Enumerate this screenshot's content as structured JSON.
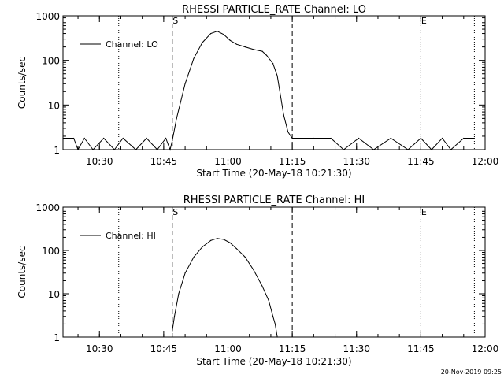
{
  "chart_data": [
    {
      "type": "line",
      "title": "RHESSI PARTICLE_RATE Channel: LO",
      "xlabel": "Start Time (20-May-18 10:21:30)",
      "ylabel": "Counts/sec",
      "y_scale": "log",
      "ylim": [
        1,
        1000
      ],
      "xlim": [
        "10:21:30",
        "12:00"
      ],
      "x_ticks": [
        "10:30",
        "10:45",
        "11:00",
        "11:15",
        "11:30",
        "11:45",
        "12:00"
      ],
      "y_ticks": [
        "1",
        "10",
        "100",
        "1000"
      ],
      "legend": "upper-left",
      "grid": false,
      "markers": [
        {
          "time": "10:47:00",
          "style": "dashed",
          "label": "S"
        },
        {
          "time": "11:15:00",
          "style": "dashed",
          "label": ""
        },
        {
          "time": "10:34:30",
          "style": "dotted",
          "label": ""
        },
        {
          "time": "11:45:00",
          "style": "dotted",
          "label": "E"
        },
        {
          "time": "11:57:30",
          "style": "dotted",
          "label": ""
        }
      ],
      "series": [
        {
          "name": "Channel: LO",
          "x": [
            "10:21:30",
            "10:24:00",
            "10:25:00",
            "10:26:30",
            "10:28:30",
            "10:31:00",
            "10:33:30",
            "10:35:30",
            "10:38:30",
            "10:41:00",
            "10:43:30",
            "10:45:30",
            "10:46:30",
            "10:47:00",
            "10:48:00",
            "10:50:00",
            "10:52:00",
            "10:54:00",
            "10:56:00",
            "10:57:30",
            "10:59:00",
            "11:00:30",
            "11:02:00",
            "11:04:00",
            "11:06:00",
            "11:08:00",
            "11:09:00",
            "11:10:30",
            "11:11:30",
            "11:13:00",
            "11:14:00",
            "11:15:00",
            "11:20:00",
            "11:24:00",
            "11:27:00",
            "11:30:30",
            "11:34:00",
            "11:38:00",
            "11:42:00",
            "11:45:00",
            "11:47:30",
            "11:50:00",
            "11:52:00",
            "11:55:00",
            "11:57:30"
          ],
          "values": [
            1.8,
            1.8,
            1,
            1.8,
            1,
            1.8,
            1,
            1.8,
            1,
            1.8,
            1,
            1.8,
            1,
            1.6,
            5,
            30,
            110,
            250,
            400,
            450,
            380,
            280,
            230,
            200,
            175,
            160,
            130,
            85,
            45,
            6,
            2.5,
            1.8,
            1.8,
            1.8,
            1,
            1.8,
            1,
            1.8,
            1,
            1.8,
            1,
            1.8,
            1,
            1.8,
            1.8
          ]
        }
      ]
    },
    {
      "type": "line",
      "title": "RHESSI PARTICLE_RATE Channel: HI",
      "xlabel": "Start Time (20-May-18 10:21:30)",
      "ylabel": "Counts/sec",
      "y_scale": "log",
      "ylim": [
        1,
        1000
      ],
      "xlim": [
        "10:21:30",
        "12:00"
      ],
      "x_ticks": [
        "10:30",
        "10:45",
        "11:00",
        "11:15",
        "11:30",
        "11:45",
        "12:00"
      ],
      "y_ticks": [
        "1",
        "10",
        "100",
        "1000"
      ],
      "legend": "upper-left",
      "grid": false,
      "markers": [
        {
          "time": "10:47:00",
          "style": "dashed",
          "label": "S"
        },
        {
          "time": "11:15:00",
          "style": "dashed",
          "label": ""
        },
        {
          "time": "10:34:30",
          "style": "dotted",
          "label": ""
        },
        {
          "time": "11:45:00",
          "style": "dotted",
          "label": "E"
        },
        {
          "time": "11:57:30",
          "style": "dotted",
          "label": ""
        }
      ],
      "series": [
        {
          "name": "Channel: HI",
          "x": [
            "10:47:00",
            "10:47:30",
            "10:48:30",
            "10:50:00",
            "10:52:00",
            "10:54:00",
            "10:56:00",
            "10:57:30",
            "10:59:00",
            "11:00:30",
            "11:02:00",
            "11:04:00",
            "11:06:00",
            "11:08:00",
            "11:09:30",
            "11:10:30",
            "11:11:00",
            "11:11:30"
          ],
          "values": [
            1.4,
            3,
            10,
            30,
            70,
            120,
            170,
            190,
            180,
            150,
            110,
            70,
            35,
            15,
            7,
            3,
            2,
            1
          ]
        }
      ]
    }
  ],
  "footer": {
    "timestamp": "20-Nov-2019 09:25"
  }
}
